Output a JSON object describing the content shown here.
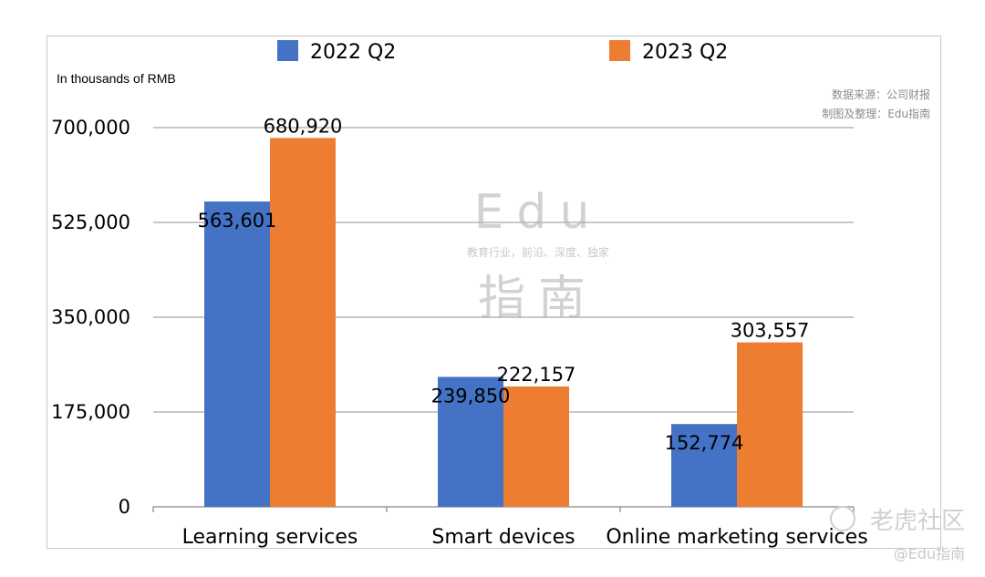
{
  "chart_data": {
    "type": "bar",
    "unit_label": "In thousands of RMB",
    "categories": [
      "Learning services",
      "Smart devices",
      "Online marketing services"
    ],
    "series": [
      {
        "name": "2022 Q2",
        "values": [
          563601,
          239850,
          152774
        ],
        "labels": [
          "563,601",
          "239,850",
          "152,774"
        ],
        "color": "#4472c4"
      },
      {
        "name": "2023 Q2",
        "values": [
          680920,
          222157,
          303557
        ],
        "labels": [
          "680,920",
          "222,157",
          "303,557"
        ],
        "color": "#ed7d31"
      }
    ],
    "yticks": [
      0,
      175000,
      350000,
      525000,
      700000
    ],
    "ytick_labels": [
      "0",
      "175,000",
      "350,000",
      "525,000",
      "700,000"
    ],
    "ylim": [
      0,
      700000
    ],
    "grid": true,
    "legend_position": "top"
  },
  "source_note": {
    "line1": "数据来源：公司财报",
    "line2": "制图及整理：Edu指南"
  },
  "watermark": {
    "brand": "Edu",
    "tagline": "教育行业，前沿、深度、独家",
    "name": "指南"
  },
  "corner_mark": {
    "title": "老虎社区",
    "handle": "@Edu指南"
  }
}
